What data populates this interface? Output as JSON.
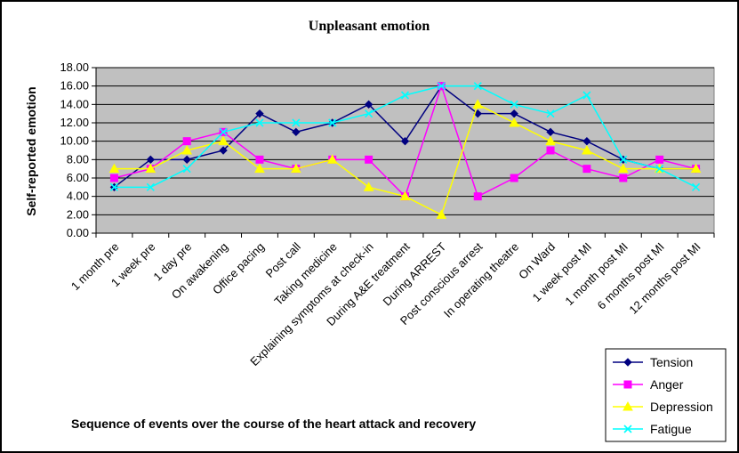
{
  "chart_data": {
    "type": "line",
    "title": "Unpleasant emotion",
    "xlabel": "Sequence of events over the course of the heart attack and recovery",
    "ylabel": "Self-reported emotion",
    "ylim": [
      0,
      18
    ],
    "yticks": [
      "0.00",
      "2.00",
      "4.00",
      "6.00",
      "8.00",
      "10.00",
      "12.00",
      "14.00",
      "16.00",
      "18.00"
    ],
    "grid": true,
    "legend_position": "bottom-right",
    "plot_background": "#c0c0c0",
    "categories": [
      "1 month pre",
      "1 week pre",
      "1 day pre",
      "On awakening",
      "Office pacing",
      "Post call",
      "Taking medicine",
      "Explaining symptoms at check-in",
      "During A&E treatment",
      "During ARREST",
      "Post conscious arrest",
      "In operating theatre",
      "On Ward",
      "1 week post MI",
      "1 month post MI",
      "6 months post MI",
      "12 months post MI"
    ],
    "series": [
      {
        "name": "Tension",
        "color": "#000080",
        "marker": "diamond",
        "values": [
          5,
          8,
          8,
          9,
          13,
          11,
          12,
          14,
          10,
          16,
          13,
          13,
          11,
          10,
          8,
          7,
          7
        ]
      },
      {
        "name": "Anger",
        "color": "#ff00ff",
        "marker": "square",
        "values": [
          6,
          7,
          10,
          11,
          8,
          7,
          8,
          8,
          4,
          16,
          4,
          6,
          9,
          7,
          6,
          8,
          7
        ]
      },
      {
        "name": "Depression",
        "color": "#ffff00",
        "marker": "triangle",
        "values": [
          7,
          7,
          9,
          10,
          7,
          7,
          8,
          5,
          4,
          2,
          14,
          12,
          10,
          9,
          7,
          7,
          7
        ]
      },
      {
        "name": "Fatigue",
        "color": "#00ffff",
        "marker": "x",
        "values": [
          5,
          5,
          7,
          11,
          12,
          12,
          12,
          13,
          15,
          16,
          16,
          14,
          13,
          15,
          8,
          7,
          5
        ]
      }
    ]
  }
}
